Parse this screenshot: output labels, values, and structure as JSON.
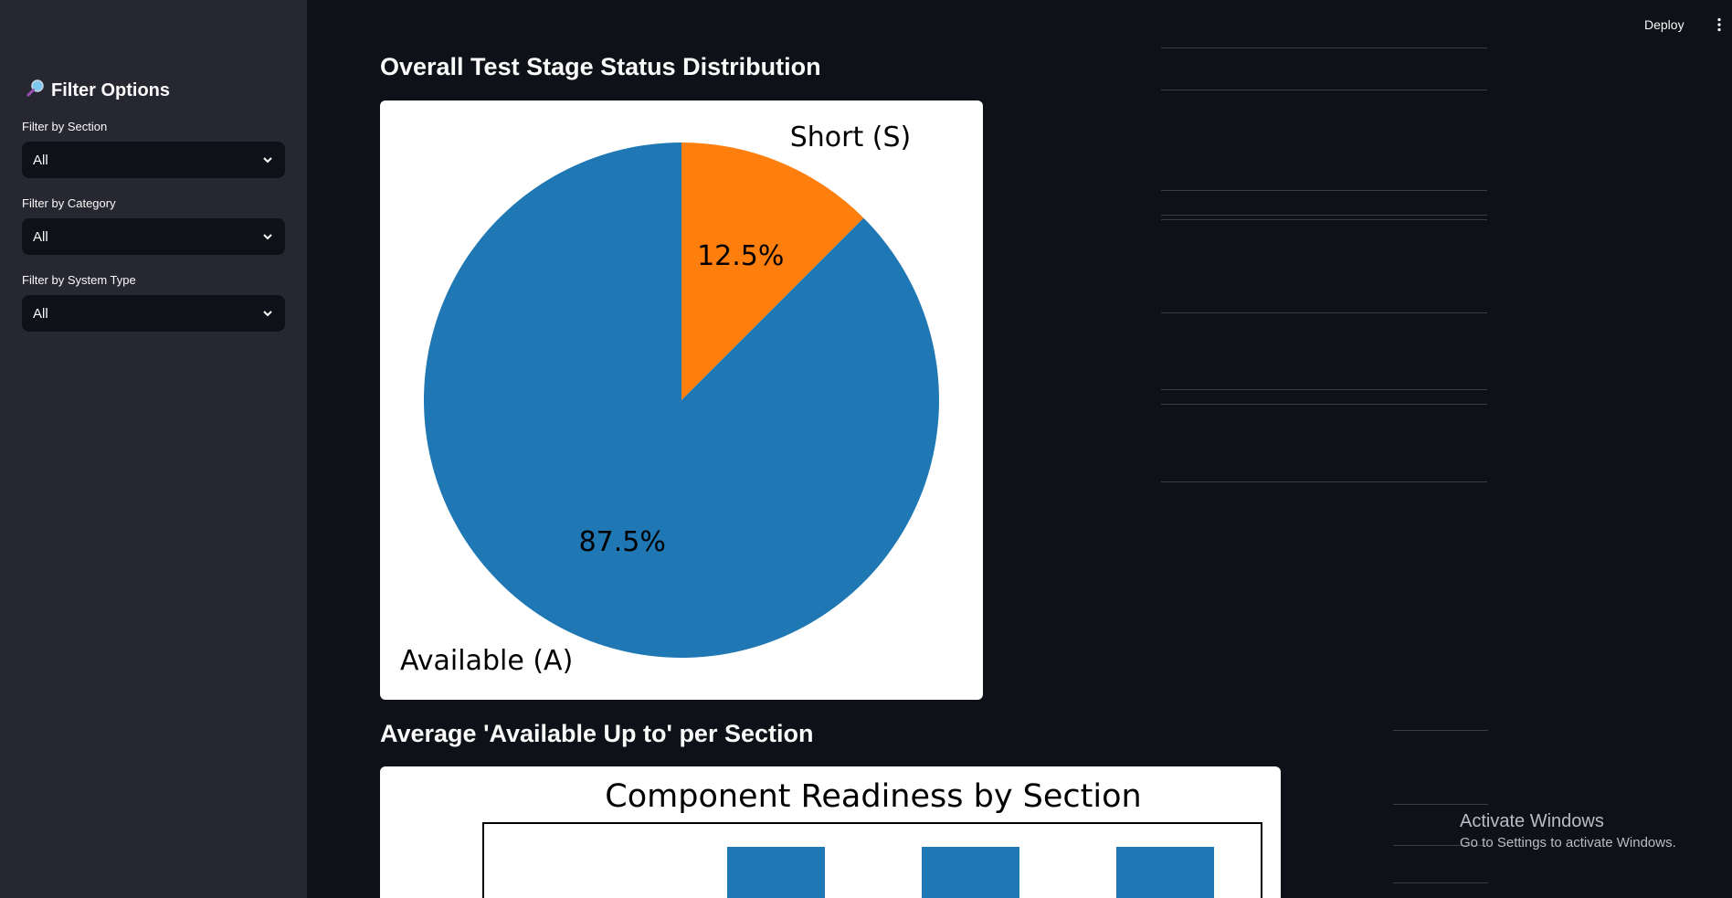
{
  "sidebar": {
    "title": "Filter Options",
    "title_icon": "magnifier-icon",
    "filters": [
      {
        "label": "Filter by Section",
        "value": "All"
      },
      {
        "label": "Filter by Category",
        "value": "All"
      },
      {
        "label": "Filter by System Type",
        "value": "All"
      }
    ]
  },
  "toolbar": {
    "deploy_label": "Deploy",
    "menu_icon": "more-vertical-icon"
  },
  "main": {
    "heading_status": "Overall Test Stage Status Distribution",
    "heading_average": "Average 'Available Up to' per Section"
  },
  "chart_data": [
    {
      "type": "pie",
      "labels": [
        "Short (S)",
        "Available (A)"
      ],
      "values": [
        12.5,
        87.5
      ],
      "value_labels": [
        "12.5%",
        "87.5%"
      ],
      "colors": [
        "#ff7f0e",
        "#1f77b4"
      ],
      "start_angle_deg": 90,
      "direction": "clockwise"
    },
    {
      "type": "bar",
      "title": "Component Readiness by Section",
      "color": "#1f77b4",
      "note": "chart cropped at bottom edge; only tops of three bars visible"
    }
  ],
  "watermark": {
    "line1": "Activate Windows",
    "line2": "Go to Settings to activate Windows."
  }
}
